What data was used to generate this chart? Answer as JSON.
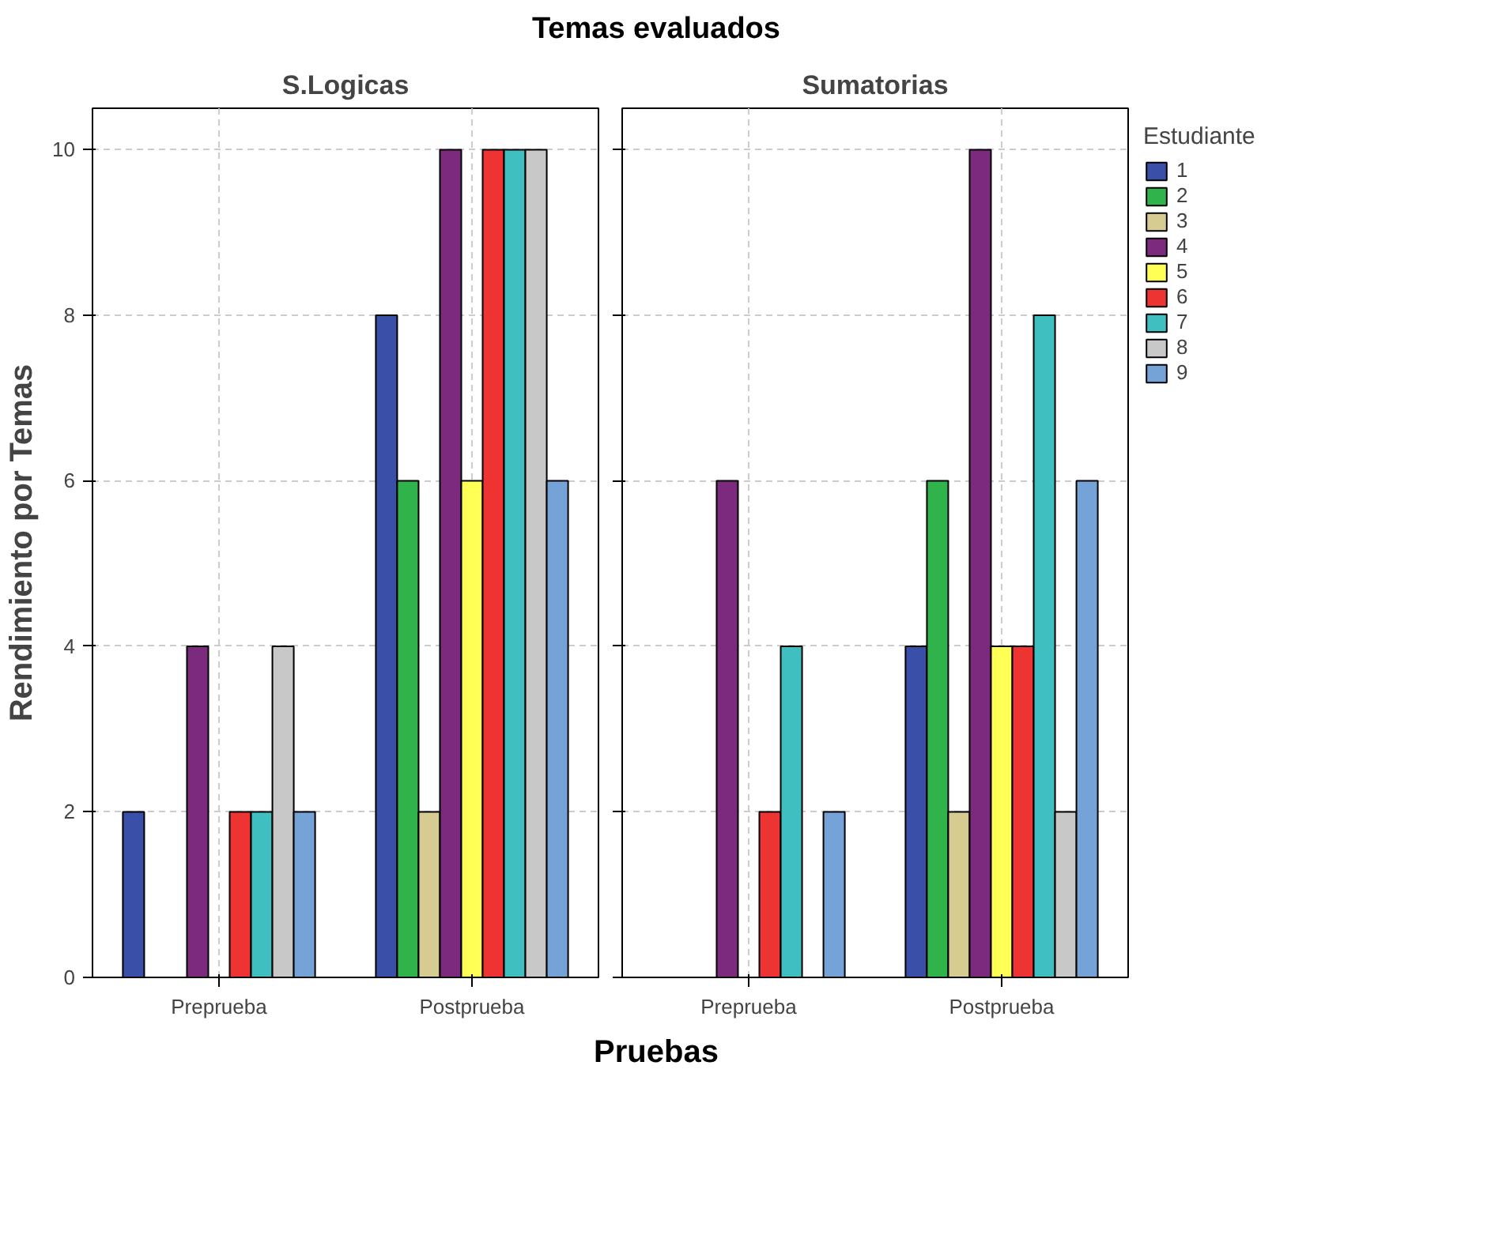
{
  "chart_data": [
    {
      "type": "bar",
      "title": "S.Logicas",
      "annotations": [
        "Temas evaluados"
      ],
      "xlabel": "Pruebas",
      "ylabel": "Rendimiento por Temas",
      "categories": [
        "Preprueba",
        "Postprueba"
      ],
      "ylim": [
        0,
        10.5
      ],
      "yticks": [
        0,
        2,
        4,
        6,
        8,
        10
      ],
      "grid": true,
      "legend": "right",
      "series": [
        {
          "name": "1",
          "color": "#3a4fa8",
          "values": [
            2,
            8
          ]
        },
        {
          "name": "2",
          "color": "#2fb34a",
          "values": [
            null,
            6
          ]
        },
        {
          "name": "3",
          "color": "#d6cc92",
          "values": [
            null,
            2
          ]
        },
        {
          "name": "4",
          "color": "#7b2a7e",
          "values": [
            4,
            10
          ]
        },
        {
          "name": "5",
          "color": "#ffff55",
          "values": [
            null,
            6
          ]
        },
        {
          "name": "6",
          "color": "#ee3333",
          "values": [
            2,
            10
          ]
        },
        {
          "name": "7",
          "color": "#40bfc0",
          "values": [
            2,
            10
          ]
        },
        {
          "name": "8",
          "color": "#c8c8c8",
          "values": [
            4,
            10
          ]
        },
        {
          "name": "9",
          "color": "#75a3d8",
          "values": [
            2,
            6
          ]
        }
      ]
    },
    {
      "type": "bar",
      "title": "Sumatorias",
      "legend_title": "Estudiante",
      "categories": [
        "Preprueba",
        "Postprueba"
      ],
      "ylim": [
        0,
        10.5
      ],
      "yticks": [
        0,
        2,
        4,
        6,
        8,
        10
      ],
      "grid": true,
      "legend": "right",
      "tick_labels": "x",
      "series": [
        {
          "name": "1",
          "color": "#3a4fa8",
          "values": [
            null,
            4
          ]
        },
        {
          "name": "2",
          "color": "#2fb34a",
          "values": [
            null,
            6
          ]
        },
        {
          "name": "3",
          "color": "#d6cc92",
          "values": [
            null,
            2
          ]
        },
        {
          "name": "4",
          "color": "#7b2a7e",
          "values": [
            6,
            10
          ]
        },
        {
          "name": "5",
          "color": "#ffff55",
          "values": [
            null,
            4
          ]
        },
        {
          "name": "6",
          "color": "#ee3333",
          "values": [
            2,
            4
          ]
        },
        {
          "name": "7",
          "color": "#40bfc0",
          "values": [
            4,
            8
          ]
        },
        {
          "name": "8",
          "color": "#c8c8c8",
          "values": [
            null,
            2
          ]
        },
        {
          "name": "9",
          "color": "#75a3d8",
          "values": [
            2,
            6
          ]
        }
      ]
    }
  ]
}
